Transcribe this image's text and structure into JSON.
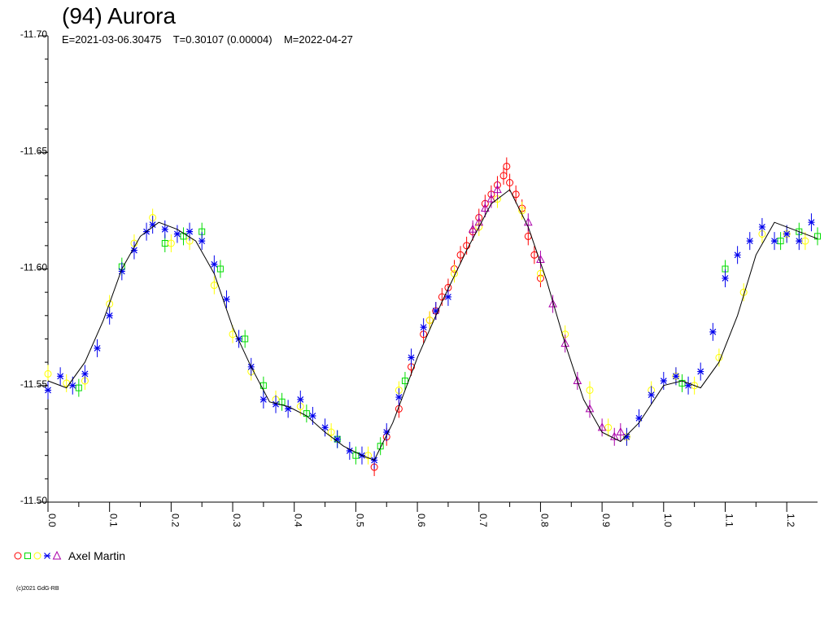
{
  "chart_data": {
    "type": "scatter",
    "title": "(94) Aurora",
    "subtitle": "E=2021-03-06.30475    T=0.30107 (0.00004)    M=2022-04-27",
    "xlabel": "",
    "ylabel": "",
    "xlim": [
      0.0,
      1.25
    ],
    "ylim": [
      -11.7,
      -11.5
    ],
    "y_inverted": true,
    "x_ticks": [
      "0.0",
      "0.1",
      "0.2",
      "0.3",
      "0.4",
      "0.5",
      "0.6",
      "0.7",
      "0.8",
      "0.9",
      "1.0",
      "1.1",
      "1.2"
    ],
    "y_ticks": [
      "-11.70",
      "-11.65",
      "-11.60",
      "-11.55",
      "-11.50"
    ],
    "grid": false,
    "legend_position": "bottom-left",
    "fit_curve": {
      "x": [
        0.0,
        0.03,
        0.06,
        0.09,
        0.12,
        0.15,
        0.18,
        0.21,
        0.24,
        0.27,
        0.3,
        0.33,
        0.36,
        0.39,
        0.42,
        0.45,
        0.48,
        0.51,
        0.53,
        0.56,
        0.6,
        0.64,
        0.68,
        0.72,
        0.75,
        0.78,
        0.81,
        0.84,
        0.87,
        0.9,
        0.93,
        0.96,
        1.0,
        1.03,
        1.06,
        1.09,
        1.12,
        1.15,
        1.18,
        1.21,
        1.25
      ],
      "y": [
        -11.552,
        -11.549,
        -11.56,
        -11.578,
        -11.6,
        -11.614,
        -11.62,
        -11.617,
        -11.612,
        -11.598,
        -11.575,
        -11.558,
        -11.543,
        -11.541,
        -11.537,
        -11.53,
        -11.524,
        -11.52,
        -11.518,
        -11.534,
        -11.562,
        -11.586,
        -11.608,
        -11.628,
        -11.634,
        -11.618,
        -11.595,
        -11.568,
        -11.544,
        -11.53,
        -11.526,
        -11.534,
        -11.55,
        -11.552,
        -11.549,
        -11.56,
        -11.58,
        -11.606,
        -11.62,
        -11.617,
        -11.613
      ]
    },
    "series": [
      {
        "name": "Axel Martin",
        "color": "#ff0000",
        "marker": "circle",
        "x": [
          0.53,
          0.55,
          0.57,
          0.59,
          0.61,
          0.62,
          0.63,
          0.64,
          0.65,
          0.66,
          0.67,
          0.68,
          0.69,
          0.7,
          0.71,
          0.72,
          0.73,
          0.74,
          0.745,
          0.75,
          0.76,
          0.77,
          0.78,
          0.79,
          0.8
        ],
        "y": [
          -11.515,
          -11.528,
          -11.54,
          -11.558,
          -11.572,
          -11.578,
          -11.582,
          -11.588,
          -11.592,
          -11.6,
          -11.606,
          -11.61,
          -11.616,
          -11.622,
          -11.628,
          -11.632,
          -11.636,
          -11.64,
          -11.644,
          -11.637,
          -11.632,
          -11.626,
          -11.614,
          -11.606,
          -11.596
        ]
      },
      {
        "name": "Axel Martin",
        "color": "#00dd00",
        "marker": "square",
        "x": [
          0.05,
          0.12,
          0.19,
          0.22,
          0.25,
          0.28,
          0.32,
          0.35,
          0.38,
          0.42,
          0.47,
          0.5,
          0.54,
          0.58,
          1.03,
          1.1,
          1.19,
          1.22,
          1.25
        ],
        "y": [
          -11.549,
          -11.601,
          -11.611,
          -11.614,
          -11.616,
          -11.6,
          -11.57,
          -11.55,
          -11.543,
          -11.538,
          -11.527,
          -11.52,
          -11.524,
          -11.552,
          -11.551,
          -11.6,
          -11.612,
          -11.616,
          -11.614
        ]
      },
      {
        "name": "Axel Martin",
        "color": "#ffff00",
        "marker": "circle",
        "x": [
          0.0,
          0.03,
          0.06,
          0.1,
          0.14,
          0.17,
          0.2,
          0.23,
          0.27,
          0.3,
          0.33,
          0.37,
          0.41,
          0.46,
          0.52,
          0.57,
          0.62,
          0.66,
          0.7,
          0.73,
          0.77,
          0.8,
          0.84,
          0.88,
          0.91,
          0.94,
          0.98,
          1.02,
          1.05,
          1.09,
          1.13,
          1.16,
          1.2,
          1.23
        ],
        "y": [
          -11.555,
          -11.551,
          -11.552,
          -11.585,
          -11.611,
          -11.622,
          -11.611,
          -11.612,
          -11.593,
          -11.572,
          -11.556,
          -11.544,
          -11.541,
          -11.53,
          -11.52,
          -11.548,
          -11.578,
          -11.598,
          -11.618,
          -11.63,
          -11.625,
          -11.598,
          -11.572,
          -11.548,
          -11.532,
          -11.528,
          -11.548,
          -11.554,
          -11.55,
          -11.562,
          -11.59,
          -11.615,
          -11.615,
          -11.612
        ]
      },
      {
        "name": "Axel Martin",
        "color": "#0000ee",
        "marker": "star",
        "x": [
          0.0,
          0.02,
          0.04,
          0.06,
          0.08,
          0.1,
          0.12,
          0.14,
          0.16,
          0.17,
          0.19,
          0.21,
          0.23,
          0.25,
          0.27,
          0.29,
          0.31,
          0.33,
          0.35,
          0.37,
          0.39,
          0.41,
          0.43,
          0.45,
          0.47,
          0.49,
          0.51,
          0.53,
          0.55,
          0.57,
          0.59,
          0.61,
          0.63,
          0.65,
          0.94,
          0.96,
          0.98,
          1.0,
          1.02,
          1.04,
          1.06,
          1.08,
          1.1,
          1.12,
          1.14,
          1.16,
          1.18,
          1.2,
          1.22,
          1.24
        ],
        "y": [
          -11.548,
          -11.554,
          -11.55,
          -11.555,
          -11.566,
          -11.58,
          -11.599,
          -11.608,
          -11.616,
          -11.619,
          -11.617,
          -11.615,
          -11.616,
          -11.612,
          -11.602,
          -11.587,
          -11.57,
          -11.558,
          -11.544,
          -11.542,
          -11.54,
          -11.544,
          -11.537,
          -11.532,
          -11.527,
          -11.522,
          -11.52,
          -11.518,
          -11.53,
          -11.545,
          -11.562,
          -11.575,
          -11.582,
          -11.588,
          -11.528,
          -11.536,
          -11.546,
          -11.552,
          -11.554,
          -11.55,
          -11.556,
          -11.573,
          -11.596,
          -11.606,
          -11.612,
          -11.618,
          -11.612,
          -11.615,
          -11.612,
          -11.62
        ]
      },
      {
        "name": "Axel Martin",
        "color": "#aa00aa",
        "marker": "triangle",
        "x": [
          0.69,
          0.7,
          0.71,
          0.72,
          0.73,
          0.78,
          0.8,
          0.82,
          0.84,
          0.86,
          0.88,
          0.9,
          0.92,
          0.93
        ],
        "y": [
          -11.617,
          -11.62,
          -11.626,
          -11.63,
          -11.634,
          -11.62,
          -11.604,
          -11.585,
          -11.568,
          -11.552,
          -11.54,
          -11.532,
          -11.528,
          -11.53
        ]
      }
    ]
  },
  "legend": {
    "label": "Axel Martin"
  },
  "copyright": "(c)2021 GdG-RB"
}
